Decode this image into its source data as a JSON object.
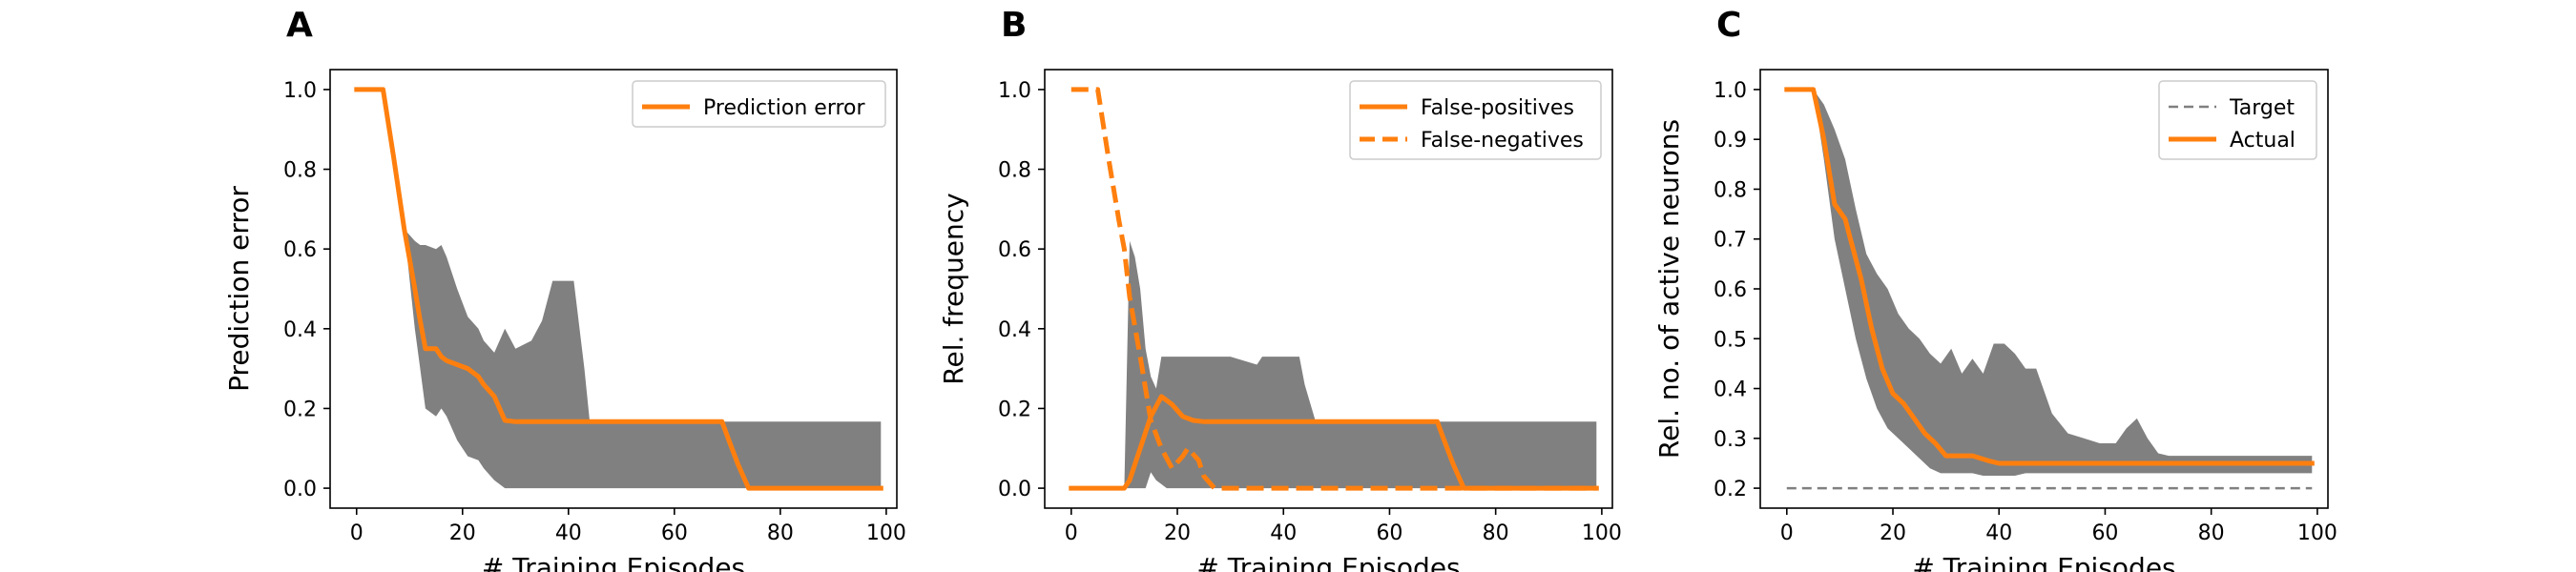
{
  "chart_data": [
    {
      "type": "line",
      "panel_letter": "A",
      "xlabel": "# Training Episodes",
      "ylabel": "Prediction error",
      "xlim": [
        -5,
        102
      ],
      "ylim": [
        -0.05,
        1.05
      ],
      "xticks": [
        0,
        20,
        40,
        60,
        80,
        100
      ],
      "yticks": [
        0.0,
        0.2,
        0.4,
        0.6,
        0.8,
        1.0
      ],
      "ytick_labels": [
        "0.0",
        "0.2",
        "0.4",
        "0.6",
        "0.8",
        "1.0"
      ],
      "grid": false,
      "legend_position": "top-right",
      "series": [
        {
          "name": "Prediction error",
          "style": "solid",
          "color": "#ff7f0e",
          "x": [
            0,
            2,
            5,
            7,
            9,
            11,
            12,
            13,
            15,
            16,
            17,
            19,
            21,
            23,
            24,
            26,
            28,
            30,
            69,
            70,
            72,
            74,
            99
          ],
          "y": [
            1.0,
            1.0,
            1.0,
            0.83,
            0.65,
            0.5,
            0.42,
            0.35,
            0.35,
            0.33,
            0.32,
            0.31,
            0.3,
            0.28,
            0.26,
            0.23,
            0.17,
            0.167,
            0.167,
            0.13,
            0.06,
            0.0,
            0.0
          ]
        }
      ],
      "band": {
        "color": "#808080",
        "x": [
          0,
          2,
          5,
          7,
          9,
          11,
          12,
          13,
          15,
          16,
          17,
          19,
          21,
          23,
          24,
          26,
          28,
          30,
          33,
          35,
          37,
          38,
          41,
          43,
          44,
          46,
          99
        ],
        "upper": [
          1.0,
          1.0,
          1.0,
          0.83,
          0.65,
          0.62,
          0.61,
          0.61,
          0.6,
          0.61,
          0.58,
          0.5,
          0.43,
          0.4,
          0.37,
          0.34,
          0.4,
          0.35,
          0.37,
          0.42,
          0.52,
          0.52,
          0.52,
          0.3,
          0.17,
          0.167,
          0.167
        ],
        "lower": [
          1.0,
          1.0,
          1.0,
          0.83,
          0.65,
          0.4,
          0.3,
          0.2,
          0.18,
          0.2,
          0.18,
          0.12,
          0.08,
          0.07,
          0.05,
          0.02,
          0.0,
          0.0,
          0.0,
          0.0,
          0.0,
          0.0,
          0.0,
          0.0,
          0.0,
          0.0,
          0.0
        ]
      }
    },
    {
      "type": "line",
      "panel_letter": "B",
      "xlabel": "# Training Episodes",
      "ylabel": "Rel. frequency",
      "xlim": [
        -5,
        102
      ],
      "ylim": [
        -0.05,
        1.05
      ],
      "xticks": [
        0,
        20,
        40,
        60,
        80,
        100
      ],
      "yticks": [
        0.0,
        0.2,
        0.4,
        0.6,
        0.8,
        1.0
      ],
      "ytick_labels": [
        "0.0",
        "0.2",
        "0.4",
        "0.6",
        "0.8",
        "1.0"
      ],
      "grid": false,
      "legend_position": "top-right",
      "series": [
        {
          "name": "False-positives",
          "style": "solid",
          "color": "#ff7f0e",
          "x": [
            0,
            5,
            10,
            11,
            13,
            15,
            17,
            19,
            21,
            23,
            25,
            30,
            69,
            70,
            72,
            74,
            99
          ],
          "y": [
            0.0,
            0.0,
            0.0,
            0.02,
            0.1,
            0.18,
            0.23,
            0.21,
            0.18,
            0.17,
            0.167,
            0.167,
            0.167,
            0.13,
            0.06,
            0.0,
            0.0
          ]
        },
        {
          "name": "False-negatives",
          "style": "dashed",
          "color": "#ff7f0e",
          "x": [
            0,
            2,
            5,
            7,
            9,
            10,
            11,
            13,
            15,
            17,
            19,
            21,
            22,
            24,
            25,
            27,
            29,
            30,
            99
          ],
          "y": [
            1.0,
            1.0,
            1.0,
            0.83,
            0.67,
            0.6,
            0.48,
            0.33,
            0.17,
            0.1,
            0.05,
            0.08,
            0.1,
            0.07,
            0.03,
            0.0,
            0.0,
            0.0,
            0.0
          ]
        }
      ],
      "band": {
        "color": "#808080",
        "x": [
          0,
          5,
          9,
          10,
          11,
          12,
          13,
          14,
          15,
          16,
          17,
          18,
          19,
          20,
          25,
          30,
          35,
          36,
          38,
          40,
          42,
          43,
          44,
          46,
          48,
          99
        ],
        "upper": [
          0.0,
          0.0,
          0.0,
          0.0,
          0.62,
          0.58,
          0.5,
          0.35,
          0.28,
          0.25,
          0.33,
          0.33,
          0.33,
          0.33,
          0.33,
          0.33,
          0.31,
          0.33,
          0.33,
          0.33,
          0.33,
          0.33,
          0.26,
          0.17,
          0.167,
          0.167
        ],
        "lower": [
          0.0,
          0.0,
          0.0,
          0.0,
          0.0,
          0.0,
          0.0,
          0.0,
          0.04,
          0.02,
          0.01,
          0.0,
          0.0,
          0.0,
          0.0,
          0.0,
          0.0,
          0.0,
          0.0,
          0.0,
          0.0,
          0.0,
          0.0,
          0.0,
          0.0,
          0.0
        ]
      }
    },
    {
      "type": "line",
      "panel_letter": "C",
      "xlabel": "# Training Episodes",
      "ylabel": "Rel. no. of active neurons",
      "xlim": [
        -5,
        102
      ],
      "ylim": [
        0.16,
        1.04
      ],
      "xticks": [
        0,
        20,
        40,
        60,
        80,
        100
      ],
      "yticks": [
        0.2,
        0.3,
        0.4,
        0.5,
        0.6,
        0.7,
        0.8,
        0.9,
        1.0
      ],
      "ytick_labels": [
        "0.2",
        "0.3",
        "0.4",
        "0.5",
        "0.6",
        "0.7",
        "0.8",
        "0.9",
        "1.0"
      ],
      "grid": false,
      "legend_position": "top-right",
      "series": [
        {
          "name": "Target",
          "style": "dashed",
          "color": "#808080",
          "x": [
            0,
            99
          ],
          "y": [
            0.2,
            0.2
          ]
        },
        {
          "name": "Actual",
          "style": "solid",
          "color": "#ff7f0e",
          "x": [
            0,
            2,
            5,
            7,
            9,
            11,
            12,
            14,
            16,
            18,
            20,
            22,
            24,
            26,
            28,
            30,
            35,
            38,
            40,
            45,
            50,
            99
          ],
          "y": [
            1.0,
            1.0,
            1.0,
            0.9,
            0.77,
            0.74,
            0.7,
            0.62,
            0.52,
            0.44,
            0.39,
            0.37,
            0.34,
            0.31,
            0.29,
            0.265,
            0.265,
            0.255,
            0.25,
            0.25,
            0.25,
            0.25
          ]
        }
      ],
      "band": {
        "color": "#808080",
        "x": [
          0,
          2,
          5,
          7,
          9,
          11,
          13,
          15,
          17,
          19,
          21,
          23,
          25,
          27,
          29,
          31,
          33,
          35,
          37,
          39,
          41,
          43,
          45,
          47,
          50,
          53,
          56,
          59,
          62,
          64,
          66,
          68,
          70,
          72,
          99
        ],
        "upper": [
          1.0,
          1.0,
          1.0,
          0.97,
          0.92,
          0.86,
          0.76,
          0.67,
          0.63,
          0.6,
          0.55,
          0.52,
          0.5,
          0.47,
          0.45,
          0.48,
          0.43,
          0.46,
          0.43,
          0.49,
          0.49,
          0.47,
          0.44,
          0.44,
          0.35,
          0.31,
          0.3,
          0.29,
          0.29,
          0.32,
          0.34,
          0.3,
          0.27,
          0.265,
          0.265
        ],
        "lower": [
          1.0,
          1.0,
          1.0,
          0.86,
          0.7,
          0.6,
          0.5,
          0.42,
          0.36,
          0.32,
          0.3,
          0.28,
          0.26,
          0.24,
          0.23,
          0.23,
          0.23,
          0.23,
          0.225,
          0.225,
          0.225,
          0.225,
          0.23,
          0.23,
          0.23,
          0.23,
          0.23,
          0.23,
          0.23,
          0.23,
          0.23,
          0.23,
          0.23,
          0.23,
          0.23
        ]
      }
    }
  ]
}
